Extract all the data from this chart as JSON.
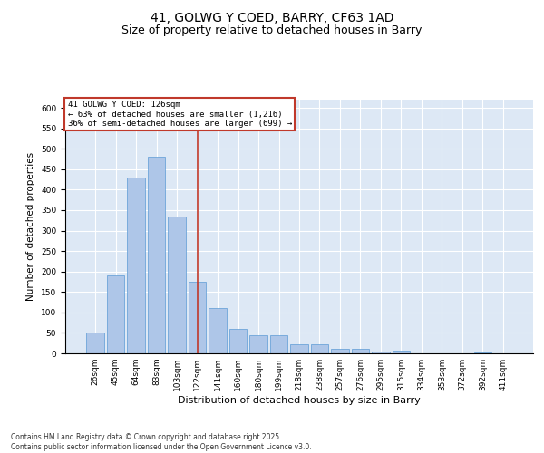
{
  "title": "41, GOLWG Y COED, BARRY, CF63 1AD",
  "subtitle": "Size of property relative to detached houses in Barry",
  "xlabel": "Distribution of detached houses by size in Barry",
  "ylabel": "Number of detached properties",
  "categories": [
    "26sqm",
    "45sqm",
    "64sqm",
    "83sqm",
    "103sqm",
    "122sqm",
    "141sqm",
    "160sqm",
    "180sqm",
    "199sqm",
    "218sqm",
    "238sqm",
    "257sqm",
    "276sqm",
    "295sqm",
    "315sqm",
    "334sqm",
    "353sqm",
    "372sqm",
    "392sqm",
    "411sqm"
  ],
  "values": [
    50,
    190,
    430,
    480,
    335,
    175,
    110,
    60,
    45,
    45,
    22,
    22,
    10,
    12,
    4,
    6,
    1,
    1,
    1,
    2,
    1
  ],
  "bar_color": "#aec6e8",
  "bar_edge_color": "#5b9bd5",
  "vline_x_index": 5,
  "vline_color": "#c0392b",
  "annotation_box_text": "41 GOLWG Y COED: 126sqm\n← 63% of detached houses are smaller (1,216)\n36% of semi-detached houses are larger (699) →",
  "annotation_box_color": "#c0392b",
  "ylim": [
    0,
    620
  ],
  "yticks": [
    0,
    50,
    100,
    150,
    200,
    250,
    300,
    350,
    400,
    450,
    500,
    550,
    600
  ],
  "bg_color": "#dde8f5",
  "grid_color": "#ffffff",
  "footer": "Contains HM Land Registry data © Crown copyright and database right 2025.\nContains public sector information licensed under the Open Government Licence v3.0.",
  "title_fontsize": 10,
  "subtitle_fontsize": 9,
  "xlabel_fontsize": 8,
  "ylabel_fontsize": 7.5,
  "tick_fontsize": 6.5,
  "footer_fontsize": 5.5
}
